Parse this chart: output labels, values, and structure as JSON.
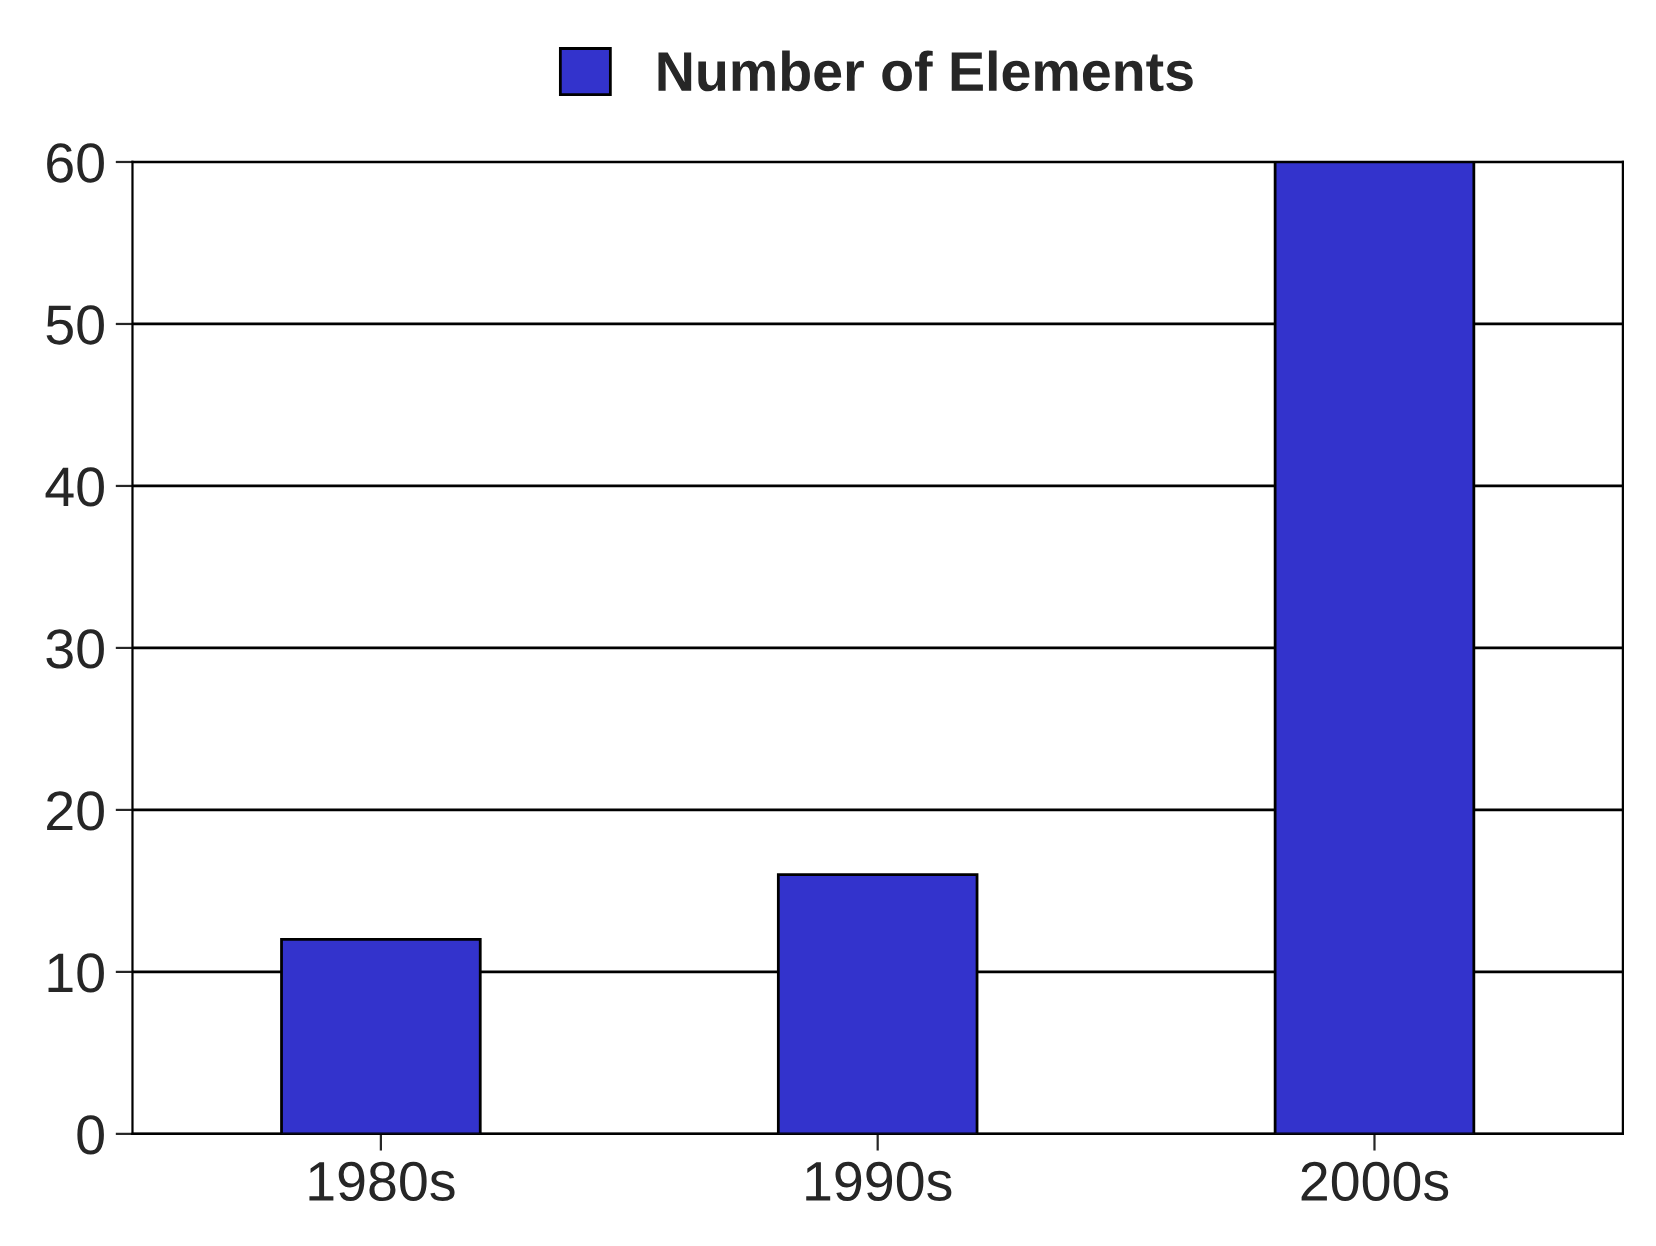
{
  "chart_data": {
    "type": "bar",
    "categories": [
      "1980s",
      "1990s",
      "2000s"
    ],
    "series": [
      {
        "name": "Number of Elements",
        "color": "#3333cc",
        "values": [
          12,
          16,
          60
        ]
      }
    ],
    "ylim": [
      0,
      60
    ],
    "yticks": [
      0,
      10,
      20,
      30,
      40,
      50,
      60
    ],
    "grid": "y",
    "legend": "top"
  }
}
